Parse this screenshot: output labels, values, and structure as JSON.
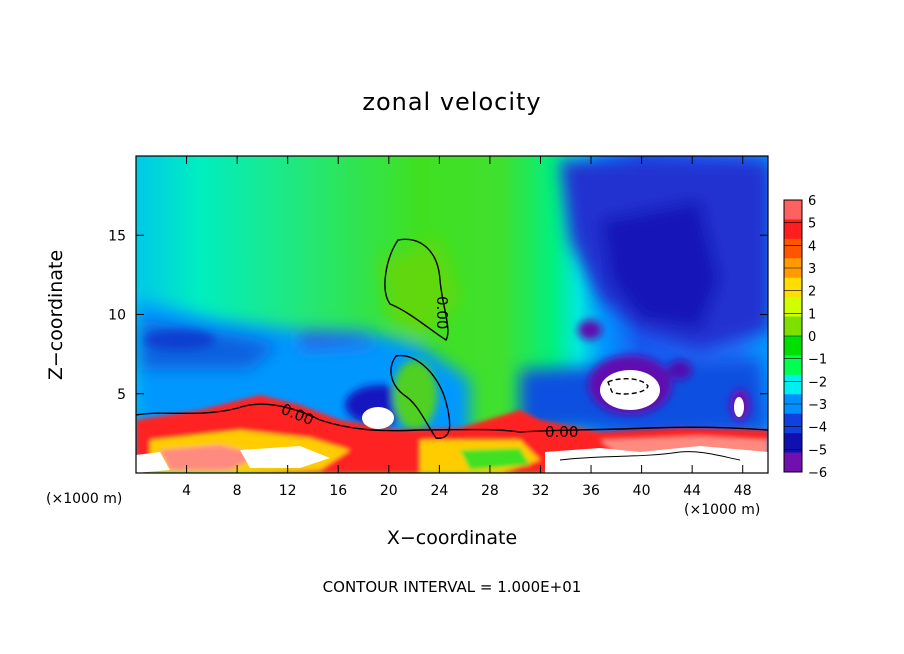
{
  "chart_data": {
    "type": "heatmap",
    "title": "zonal velocity",
    "xlabel": "X−coordinate",
    "ylabel": "Z−coordinate",
    "x_unit_label": "(×1000 m)",
    "x_range": [
      0,
      50
    ],
    "y_range": [
      0,
      20
    ],
    "x_ticks": [
      4,
      8,
      12,
      16,
      20,
      24,
      28,
      32,
      36,
      40,
      44,
      48
    ],
    "y_ticks": [
      5,
      10,
      15
    ],
    "colorbar": {
      "range": [
        -6,
        6
      ],
      "tick_labels": [
        "6",
        "5",
        "4",
        "3",
        "2",
        "1",
        "0",
        "−1",
        "−2",
        "−3",
        "−4",
        "−5",
        "−6"
      ],
      "colors": [
        "#ff6060",
        "#ff1e1e",
        "#ff5500",
        "#ff9a00",
        "#ffdd00",
        "#cfff00",
        "#7ee000",
        "#00e000",
        "#00ff50",
        "#00f0f0",
        "#0090ff",
        "#1040e0",
        "#1010b0",
        "#7010b0"
      ]
    },
    "contour_labels": [
      "0.00",
      "0.00",
      "0.00"
    ],
    "footnote": "CONTOUR INTERVAL = 1.000E+01"
  }
}
